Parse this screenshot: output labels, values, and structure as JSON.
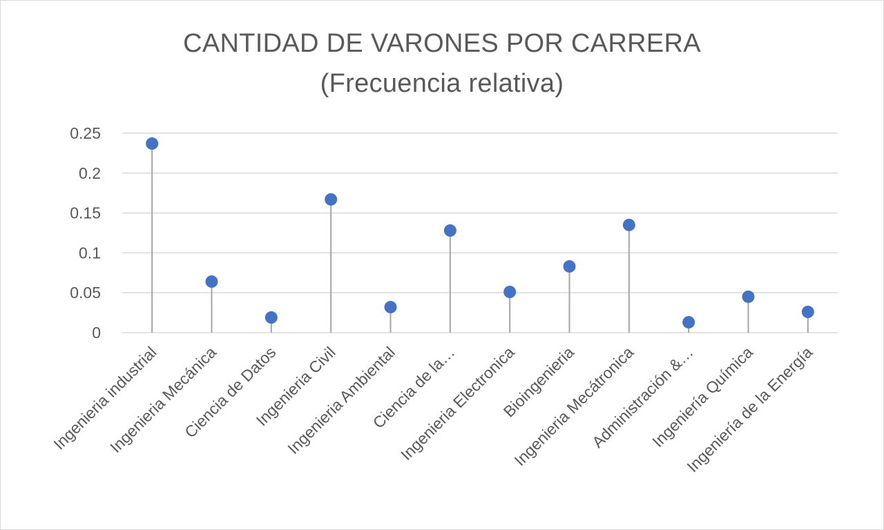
{
  "chart_data": {
    "type": "scatter",
    "title": "CANTIDAD DE VARONES POR CARRERA",
    "subtitle": "(Frecuencia relativa)",
    "xlabel": "",
    "ylabel": "",
    "ylim": [
      0,
      0.25
    ],
    "y_ticks": [
      "0",
      "0.05",
      "0.1",
      "0.15",
      "0.2",
      "0.25"
    ],
    "grid": true,
    "categories": [
      "Ingenieria industrial",
      "Ingenieria Mecánica",
      "Ciencia de Datos",
      "Ingenieria Civil",
      "Ingenieria Ambiental",
      "Ciencia de la…",
      "Ingenieria Electronica",
      "Bioingenieria",
      "Ingenieria Mecátronica",
      "Administración &…",
      "Ingeniería Química",
      "Ingeniería de la Energía"
    ],
    "values": [
      0.237,
      0.064,
      0.019,
      0.167,
      0.032,
      0.128,
      0.051,
      0.083,
      0.135,
      0.013,
      0.045,
      0.026
    ],
    "colors": {
      "marker": "#4472C4",
      "stem": "#A5A5A5",
      "grid": "#D9D9D9",
      "text": "#595959"
    }
  }
}
